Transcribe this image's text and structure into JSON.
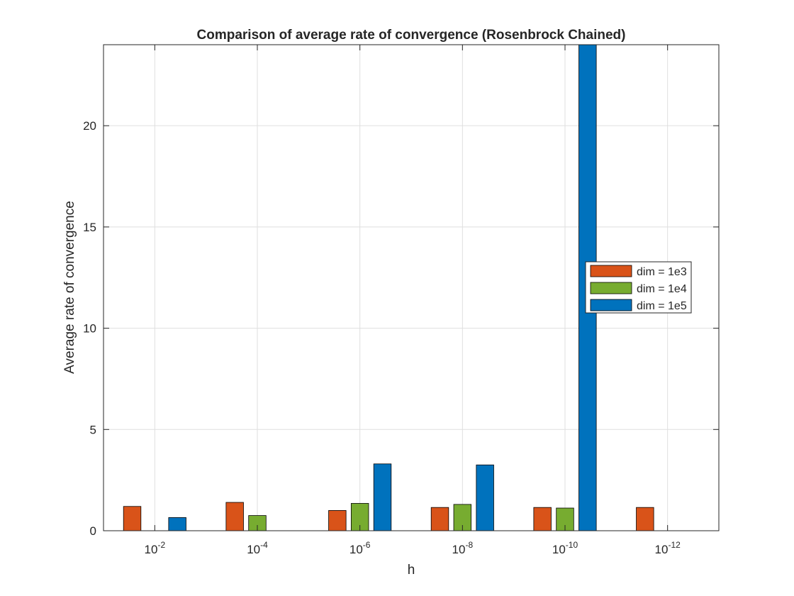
{
  "chart_data": {
    "type": "bar",
    "title": "Comparison of average rate of convergence (Rosenbrock Chained)",
    "xlabel": "h",
    "ylabel": "Average rate of convergence",
    "categories": [
      {
        "base": "10",
        "exp": "-2"
      },
      {
        "base": "10",
        "exp": "-4"
      },
      {
        "base": "10",
        "exp": "-6"
      },
      {
        "base": "10",
        "exp": "-8"
      },
      {
        "base": "10",
        "exp": "-10"
      },
      {
        "base": "10",
        "exp": "-12"
      }
    ],
    "series": [
      {
        "name": "dim = 1e3",
        "color": "#d95319",
        "values": [
          1.2,
          1.4,
          1.0,
          1.15,
          1.15,
          1.15
        ]
      },
      {
        "name": "dim = 1e4",
        "color": "#77ac30",
        "values": [
          null,
          0.75,
          1.35,
          1.3,
          1.12,
          null
        ]
      },
      {
        "name": "dim = 1e5",
        "color": "#0072bd",
        "values": [
          0.65,
          null,
          3.3,
          3.25,
          24,
          null
        ]
      }
    ],
    "ylim": [
      0,
      24
    ],
    "yticks": [
      0,
      5,
      10,
      15,
      20
    ],
    "grid": true,
    "legend_position": "right"
  }
}
